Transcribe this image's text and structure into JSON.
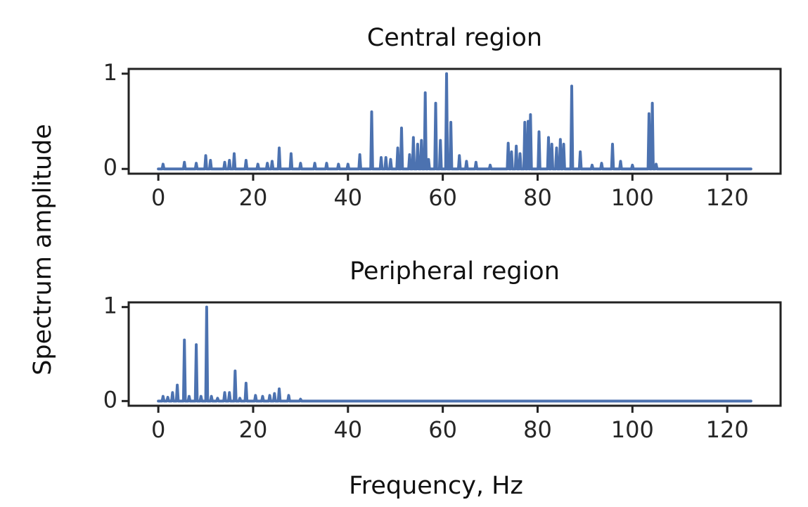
{
  "ylabel": "Spectrum amplitude",
  "xlabel": "Frequency, Hz",
  "chart_data": [
    {
      "type": "line",
      "title": "Central region",
      "color": "#4c72b0",
      "xlim": [
        -6.25,
        131.25
      ],
      "ylim": [
        -0.05,
        1.05
      ],
      "xticks": [
        0,
        20,
        40,
        60,
        80,
        100,
        120
      ],
      "yticks": [
        0,
        1
      ],
      "x": [
        0,
        0.8,
        1,
        1.2,
        5.3,
        5.5,
        5.7,
        7.8,
        8,
        8.2,
        9.8,
        10,
        10.2,
        10.8,
        11,
        11.2,
        13.8,
        14,
        14.2,
        14.8,
        15,
        15.2,
        15.8,
        16,
        16.2,
        18.3,
        18.5,
        18.7,
        20.8,
        21,
        21.2,
        22.8,
        23,
        23.2,
        23.8,
        24,
        24.2,
        25.3,
        25.5,
        25.7,
        27.8,
        28,
        28.2,
        29.8,
        30,
        30.2,
        32.8,
        33,
        33.2,
        35.3,
        35.5,
        35.7,
        37.8,
        38,
        38.2,
        39.8,
        40,
        40.2,
        42.3,
        42.5,
        42.7,
        44.8,
        45,
        45.2,
        46.8,
        47,
        47.2,
        47.8,
        48,
        48.2,
        48.8,
        49,
        49.2,
        50.3,
        50.5,
        50.7,
        51.1,
        51.3,
        51.5,
        52.8,
        53,
        53.2,
        53.6,
        53.8,
        54,
        54.5,
        54.7,
        54.9,
        55.3,
        55.5,
        55.7,
        56.1,
        56.3,
        56.5,
        56.8,
        57,
        57.2,
        58.3,
        58.5,
        58.7,
        59.3,
        59.5,
        59.7,
        60.6,
        60.8,
        61,
        61.5,
        61.7,
        61.9,
        63.3,
        63.5,
        63.7,
        64.8,
        65,
        65.2,
        66.8,
        67,
        67.2,
        69.8,
        70,
        70.2,
        73.6,
        73.8,
        74,
        74.3,
        74.5,
        74.7,
        75.3,
        75.5,
        75.7,
        76.1,
        76.3,
        76.5,
        77.1,
        77.3,
        77.5,
        77.8,
        78,
        78.2,
        78.3,
        78.5,
        78.7,
        80.1,
        80.3,
        80.5,
        82.1,
        82.3,
        82.5,
        82.8,
        83,
        83.2,
        83.8,
        84,
        84.2,
        84.6,
        84.8,
        85,
        85.3,
        85.5,
        85.7,
        87,
        87.2,
        87.4,
        88.8,
        89,
        89.2,
        91.3,
        91.5,
        91.7,
        93.3,
        93.5,
        93.7,
        95.6,
        95.8,
        96,
        97.3,
        97.5,
        97.7,
        99.8,
        100,
        100.2,
        103.3,
        103.5,
        103.7,
        104,
        104.2,
        104.4,
        104.8,
        105,
        105.2,
        125
      ],
      "values": [
        0,
        0,
        0.05,
        0,
        0,
        0.07,
        0,
        0,
        0.06,
        0,
        0,
        0.14,
        0,
        0,
        0.09,
        0,
        0,
        0.07,
        0,
        0,
        0.09,
        0,
        0,
        0.16,
        0,
        0,
        0.09,
        0,
        0,
        0.05,
        0,
        0,
        0.06,
        0,
        0,
        0.08,
        0,
        0,
        0.22,
        0,
        0,
        0.16,
        0,
        0,
        0.06,
        0,
        0,
        0.06,
        0,
        0,
        0.06,
        0,
        0,
        0.05,
        0,
        0,
        0.05,
        0,
        0,
        0.15,
        0,
        0,
        0.6,
        0,
        0,
        0.12,
        0,
        0,
        0.12,
        0,
        0,
        0.1,
        0,
        0,
        0.22,
        0,
        0,
        0.43,
        0,
        0,
        0.15,
        0,
        0,
        0.33,
        0,
        0,
        0.26,
        0,
        0,
        0.3,
        0,
        0,
        0.8,
        0,
        0,
        0.1,
        0,
        0,
        0.69,
        0,
        0,
        0.3,
        0,
        0,
        1,
        0,
        0,
        0.49,
        0,
        0,
        0.14,
        0,
        0,
        0.08,
        0,
        0,
        0.07,
        0,
        0,
        0.04,
        0,
        0,
        0.27,
        0,
        0,
        0.18,
        0,
        0,
        0.24,
        0,
        0,
        0.16,
        0,
        0,
        0.49,
        0,
        0,
        0.5,
        0,
        0,
        0.57,
        0,
        0,
        0.39,
        0,
        0,
        0.33,
        0,
        0,
        0.26,
        0,
        0,
        0.22,
        0,
        0,
        0.31,
        0,
        0,
        0.26,
        0,
        0,
        0.87,
        0,
        0,
        0.18,
        0,
        0,
        0.04,
        0,
        0,
        0.06,
        0,
        0,
        0.26,
        0,
        0,
        0.08,
        0,
        0,
        0.04,
        0,
        0,
        0.58,
        0,
        0,
        0.69,
        0,
        0,
        0.05,
        0,
        0
      ]
    },
    {
      "type": "line",
      "title": "Peripheral region",
      "color": "#4c72b0",
      "xlim": [
        -6.25,
        131.25
      ],
      "ylim": [
        -0.05,
        1.05
      ],
      "xticks": [
        0,
        20,
        40,
        60,
        80,
        100,
        120
      ],
      "yticks": [
        0,
        1
      ],
      "x": [
        0,
        0.8,
        1,
        1.2,
        1.8,
        2,
        2.2,
        2.8,
        3,
        3.2,
        3.8,
        4,
        4.2,
        5.3,
        5.5,
        5.7,
        6.3,
        6.5,
        6.7,
        7.8,
        8,
        8.2,
        8.8,
        9,
        9.2,
        10,
        10.2,
        10.4,
        11,
        11.2,
        11.4,
        12.3,
        12.5,
        12.7,
        13.8,
        14,
        14.2,
        14.8,
        15,
        15.2,
        16,
        16.2,
        16.4,
        17,
        17.2,
        17.4,
        18.3,
        18.5,
        18.7,
        20.3,
        20.5,
        20.7,
        21.8,
        22,
        22.2,
        23.3,
        23.5,
        23.7,
        24.3,
        24.5,
        24.7,
        25.3,
        25.5,
        25.7,
        27.3,
        27.5,
        27.7,
        29.8,
        30,
        30.2,
        125
      ],
      "values": [
        0,
        0,
        0.05,
        0,
        0,
        0.04,
        0,
        0,
        0.09,
        0,
        0,
        0.17,
        0,
        0,
        0.65,
        0,
        0,
        0.05,
        0,
        0,
        0.6,
        0,
        0,
        0.05,
        0,
        0,
        1,
        0,
        0,
        0.05,
        0,
        0,
        0.03,
        0,
        0,
        0.09,
        0,
        0,
        0.09,
        0,
        0,
        0.32,
        0,
        0,
        0.03,
        0,
        0,
        0.19,
        0,
        0,
        0.06,
        0,
        0,
        0.05,
        0,
        0,
        0.06,
        0,
        0,
        0.08,
        0,
        0,
        0.13,
        0,
        0,
        0.06,
        0,
        0,
        0.02,
        0,
        0
      ]
    }
  ]
}
